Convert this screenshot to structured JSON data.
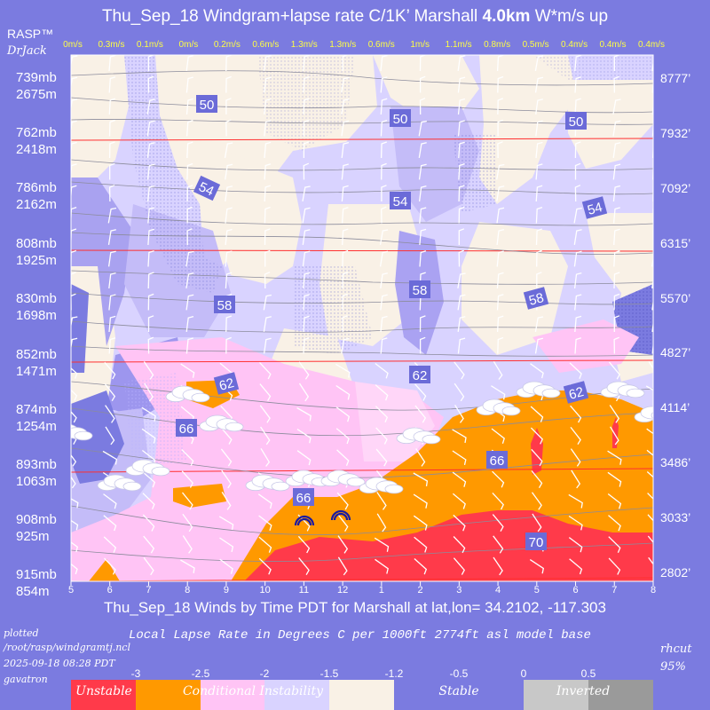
{
  "header": {
    "title_prefix": "Thu_Sep_18 Windgram+lapse rate C/1K’  Marshall ",
    "title_height": "4.0km",
    "title_suffix": "  W*m/s up",
    "rasp": "RASP™",
    "drjack": "DrJack"
  },
  "footer": {
    "xaxis_title": "Thu_Sep_18 Winds by Time PDT for Marshall at lat,lon= 34.2102, -117.303",
    "lapse_title": "Local Lapse Rate in Degrees C per 1000ft  2774ft asl model base",
    "plotted_lines": [
      "plotted",
      "/root/rasp/windgramtj.ncl",
      "2025-09-18 08:28 PDT",
      "gavatron"
    ],
    "rhcut": "rhcut",
    "rhcut_value": "95%"
  },
  "legend": {
    "ticks": [
      "-3",
      "-2.5",
      "-2",
      "-1.5",
      "-1.2",
      "-0.5",
      "0",
      "0.5"
    ],
    "bands": [
      {
        "label": "Unstable",
        "color": "#ff3a4a"
      },
      {
        "label": "Conditional Instability",
        "color": "#ff9900"
      },
      {
        "label": "",
        "color": "#ffc4f5"
      },
      {
        "label": "",
        "color": "#d9d3ff"
      },
      {
        "label": "",
        "color": "#f9f1e6"
      },
      {
        "label": "Stable",
        "color": "#7b7be0"
      },
      {
        "label": "Inverted",
        "color": "#c8c8c8"
      },
      {
        "label": "",
        "color": "#9a9a9a"
      }
    ]
  },
  "chart_data": {
    "type": "windgram",
    "x_hours": [
      "5",
      "6",
      "7",
      "8",
      "9",
      "10",
      "11",
      "12",
      "1",
      "2",
      "3",
      "4",
      "5",
      "6",
      "7",
      "8"
    ],
    "wstar_top_labels": [
      "0m/s",
      "0.3m/s",
      "0.1m/s",
      "0m/s",
      "0.2m/s",
      "0.6m/s",
      "1.3m/s",
      "1.3m/s",
      "0.6m/s",
      "1m/s",
      "1.1m/s",
      "0.8m/s",
      "0.5m/s",
      "0.4m/s",
      "0.4m/s",
      "0.4m/s"
    ],
    "pressure_levels": [
      {
        "mb": "739mb",
        "m": "2675m",
        "ft": "8777’"
      },
      {
        "mb": "762mb",
        "m": "2418m",
        "ft": "7932’"
      },
      {
        "mb": "786mb",
        "m": "2162m",
        "ft": "7092’"
      },
      {
        "mb": "808mb",
        "m": "1925m",
        "ft": "6315’"
      },
      {
        "mb": "830mb",
        "m": "1698m",
        "ft": "5570’"
      },
      {
        "mb": "852mb",
        "m": "1471m",
        "ft": "4827’"
      },
      {
        "mb": "874mb",
        "m": "1254m",
        "ft": "4114’"
      },
      {
        "mb": "893mb",
        "m": "1063m",
        "ft": "3486’"
      },
      {
        "mb": "908mb",
        "m": "925m",
        "ft": "3033’"
      },
      {
        "mb": "915mb",
        "m": "854m",
        "ft": "2802’"
      }
    ],
    "temperature_contours": [
      {
        "label": "50"
      },
      {
        "label": "50"
      },
      {
        "label": "50"
      },
      {
        "label": "54"
      },
      {
        "label": "54"
      },
      {
        "label": "54"
      },
      {
        "label": "58"
      },
      {
        "label": "58"
      },
      {
        "label": "58"
      },
      {
        "label": "62"
      },
      {
        "label": "62"
      },
      {
        "label": "62"
      },
      {
        "label": "66"
      },
      {
        "label": "66"
      },
      {
        "label": "66"
      },
      {
        "label": "70"
      }
    ]
  }
}
